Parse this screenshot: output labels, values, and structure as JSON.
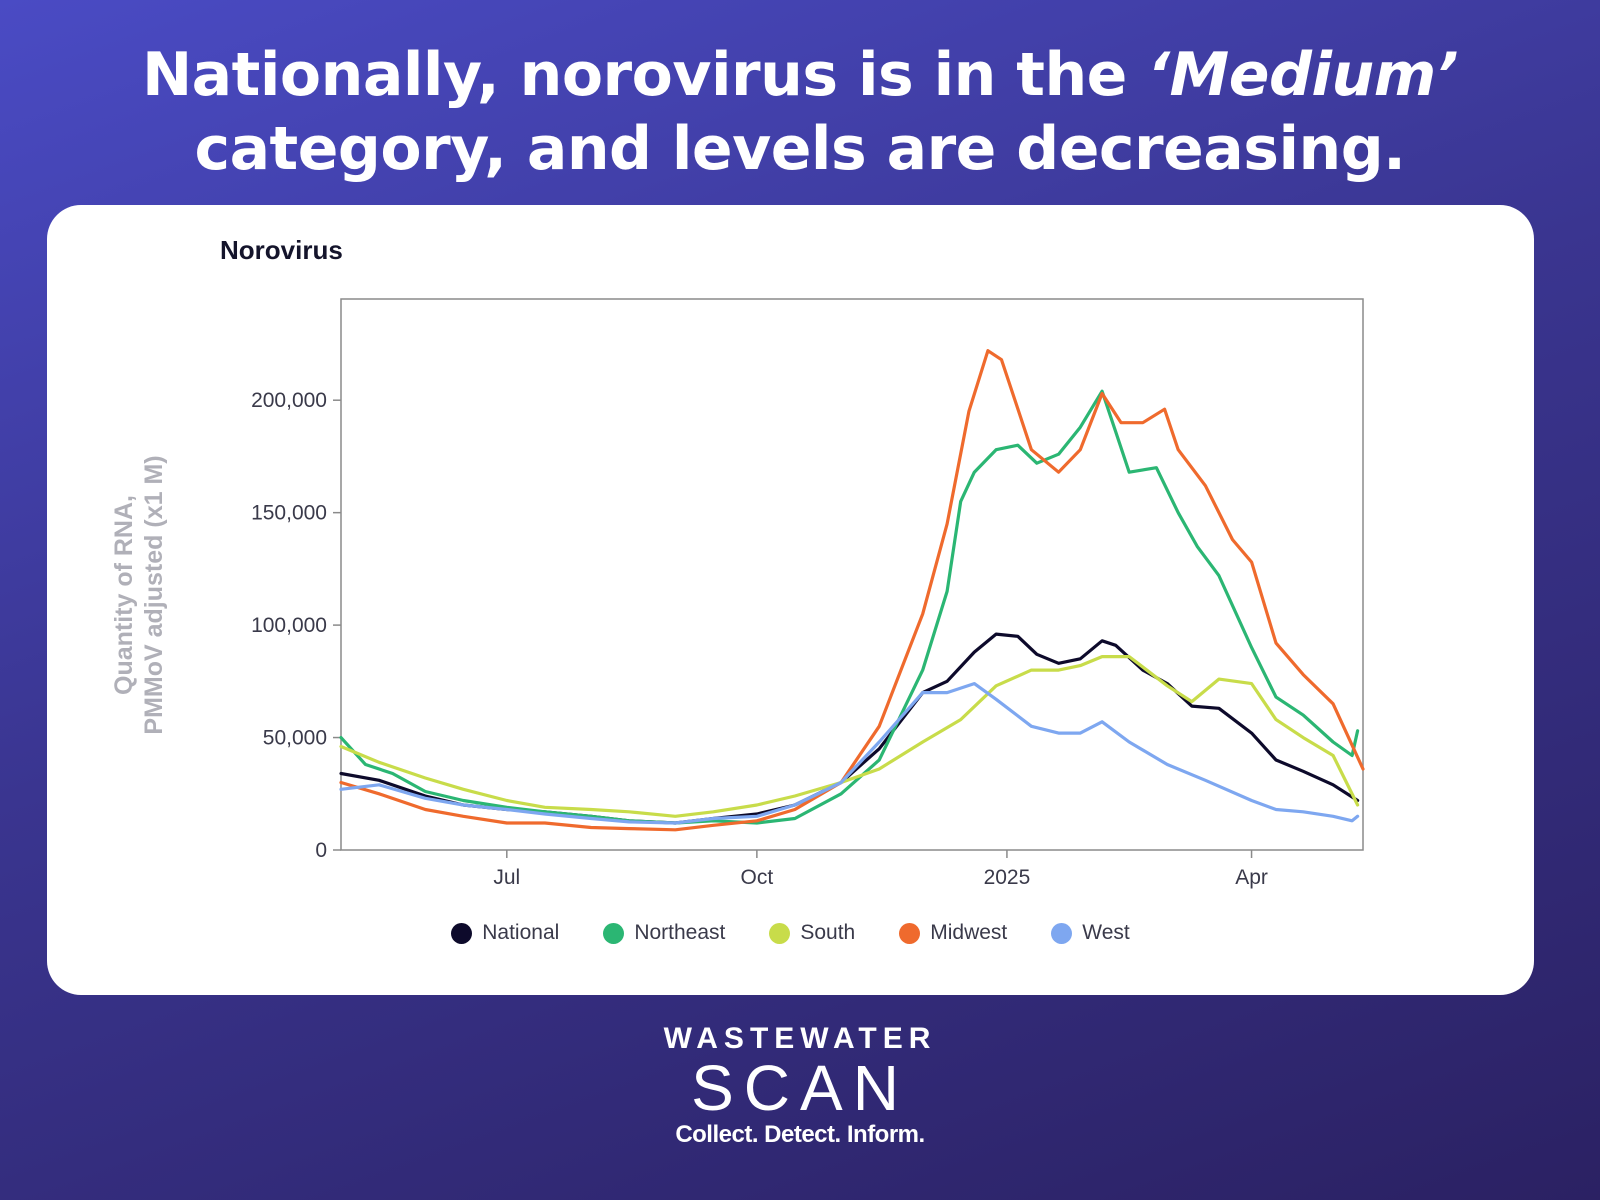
{
  "headline": {
    "line1_a": "Nationally, norovirus is in the ",
    "line1_em": "‘Medium’",
    "line2": "category, and levels are decreasing."
  },
  "logo": {
    "top": "WASTEWATER",
    "main": "SCAN",
    "tagline": "Collect. Detect. Inform."
  },
  "chart_data": {
    "type": "line",
    "title": "Norovirus",
    "ylabel_line1": "Quantity of RNA,",
    "ylabel_line2": "PMMoV adjusted (x1 M)",
    "ylim": [
      0,
      245000
    ],
    "yticks": [
      0,
      50000,
      100000,
      150000,
      200000
    ],
    "ytick_labels": [
      "0",
      "50,000",
      "100,000",
      "150,000",
      "200,000"
    ],
    "xlim": [
      "2024-05-01",
      "2025-05-12"
    ],
    "xticks": [
      "2024-07-01",
      "2024-10-01",
      "2025-01-01",
      "2025-04-01"
    ],
    "xtick_labels": [
      "Jul",
      "Oct",
      "2025",
      "Apr"
    ],
    "grid": false,
    "legend_position": "bottom",
    "series": [
      {
        "name": "National",
        "color": "#0d0a2b",
        "points": [
          [
            "2024-05-01",
            34000
          ],
          [
            "2024-05-15",
            31000
          ],
          [
            "2024-06-01",
            24000
          ],
          [
            "2024-06-15",
            20000
          ],
          [
            "2024-07-01",
            18000
          ],
          [
            "2024-07-15",
            17000
          ],
          [
            "2024-08-01",
            15000
          ],
          [
            "2024-08-15",
            13000
          ],
          [
            "2024-09-01",
            12000
          ],
          [
            "2024-09-15",
            14000
          ],
          [
            "2024-10-01",
            16000
          ],
          [
            "2024-10-15",
            20000
          ],
          [
            "2024-11-01",
            30000
          ],
          [
            "2024-11-15",
            45000
          ],
          [
            "2024-12-01",
            70000
          ],
          [
            "2024-12-10",
            75000
          ],
          [
            "2024-12-20",
            88000
          ],
          [
            "2024-12-28",
            96000
          ],
          [
            "2025-01-05",
            95000
          ],
          [
            "2025-01-12",
            87000
          ],
          [
            "2025-01-20",
            83000
          ],
          [
            "2025-01-28",
            85000
          ],
          [
            "2025-02-05",
            93000
          ],
          [
            "2025-02-10",
            91000
          ],
          [
            "2025-02-20",
            80000
          ],
          [
            "2025-03-01",
            74000
          ],
          [
            "2025-03-10",
            64000
          ],
          [
            "2025-03-20",
            63000
          ],
          [
            "2025-04-01",
            52000
          ],
          [
            "2025-04-10",
            40000
          ],
          [
            "2025-04-20",
            35000
          ],
          [
            "2025-05-01",
            29000
          ],
          [
            "2025-05-10",
            22000
          ]
        ]
      },
      {
        "name": "Northeast",
        "color": "#2bb673",
        "points": [
          [
            "2024-05-01",
            50000
          ],
          [
            "2024-05-10",
            38000
          ],
          [
            "2024-05-20",
            34000
          ],
          [
            "2024-06-01",
            26000
          ],
          [
            "2024-06-15",
            22000
          ],
          [
            "2024-07-01",
            19000
          ],
          [
            "2024-07-15",
            17000
          ],
          [
            "2024-08-01",
            15000
          ],
          [
            "2024-08-15",
            13000
          ],
          [
            "2024-09-01",
            12000
          ],
          [
            "2024-09-15",
            13000
          ],
          [
            "2024-10-01",
            12000
          ],
          [
            "2024-10-15",
            14000
          ],
          [
            "2024-11-01",
            25000
          ],
          [
            "2024-11-15",
            40000
          ],
          [
            "2024-12-01",
            80000
          ],
          [
            "2024-12-10",
            115000
          ],
          [
            "2024-12-15",
            155000
          ],
          [
            "2024-12-20",
            168000
          ],
          [
            "2024-12-28",
            178000
          ],
          [
            "2025-01-05",
            180000
          ],
          [
            "2025-01-12",
            172000
          ],
          [
            "2025-01-20",
            176000
          ],
          [
            "2025-01-28",
            188000
          ],
          [
            "2025-02-05",
            204000
          ],
          [
            "2025-02-10",
            186000
          ],
          [
            "2025-02-15",
            168000
          ],
          [
            "2025-02-25",
            170000
          ],
          [
            "2025-03-05",
            150000
          ],
          [
            "2025-03-12",
            135000
          ],
          [
            "2025-03-20",
            122000
          ],
          [
            "2025-04-01",
            90000
          ],
          [
            "2025-04-10",
            68000
          ],
          [
            "2025-04-20",
            60000
          ],
          [
            "2025-05-01",
            48000
          ],
          [
            "2025-05-08",
            42000
          ],
          [
            "2025-05-10",
            53000
          ]
        ]
      },
      {
        "name": "South",
        "color": "#c8dc4a",
        "points": [
          [
            "2024-05-01",
            46000
          ],
          [
            "2024-05-15",
            39000
          ],
          [
            "2024-06-01",
            32000
          ],
          [
            "2024-06-15",
            27000
          ],
          [
            "2024-07-01",
            22000
          ],
          [
            "2024-07-15",
            19000
          ],
          [
            "2024-08-01",
            18000
          ],
          [
            "2024-08-15",
            17000
          ],
          [
            "2024-09-01",
            15000
          ],
          [
            "2024-09-15",
            17000
          ],
          [
            "2024-10-01",
            20000
          ],
          [
            "2024-10-15",
            24000
          ],
          [
            "2024-11-01",
            30000
          ],
          [
            "2024-11-15",
            36000
          ],
          [
            "2024-12-01",
            48000
          ],
          [
            "2024-12-15",
            58000
          ],
          [
            "2024-12-28",
            73000
          ],
          [
            "2025-01-10",
            80000
          ],
          [
            "2025-01-20",
            80000
          ],
          [
            "2025-01-28",
            82000
          ],
          [
            "2025-02-05",
            86000
          ],
          [
            "2025-02-15",
            86000
          ],
          [
            "2025-03-01",
            73000
          ],
          [
            "2025-03-10",
            66000
          ],
          [
            "2025-03-20",
            76000
          ],
          [
            "2025-04-01",
            74000
          ],
          [
            "2025-04-10",
            58000
          ],
          [
            "2025-04-20",
            50000
          ],
          [
            "2025-05-01",
            42000
          ],
          [
            "2025-05-10",
            20000
          ]
        ]
      },
      {
        "name": "Midwest",
        "color": "#ef6a2d",
        "points": [
          [
            "2024-05-01",
            30000
          ],
          [
            "2024-05-15",
            25000
          ],
          [
            "2024-06-01",
            18000
          ],
          [
            "2024-06-15",
            15000
          ],
          [
            "2024-07-01",
            12000
          ],
          [
            "2024-07-15",
            12000
          ],
          [
            "2024-08-01",
            10000
          ],
          [
            "2024-08-15",
            9500
          ],
          [
            "2024-09-01",
            9000
          ],
          [
            "2024-09-15",
            11000
          ],
          [
            "2024-10-01",
            13000
          ],
          [
            "2024-10-15",
            18000
          ],
          [
            "2024-11-01",
            30000
          ],
          [
            "2024-11-15",
            55000
          ],
          [
            "2024-12-01",
            105000
          ],
          [
            "2024-12-10",
            145000
          ],
          [
            "2024-12-18",
            195000
          ],
          [
            "2024-12-25",
            222000
          ],
          [
            "2024-12-30",
            218000
          ],
          [
            "2025-01-10",
            178000
          ],
          [
            "2025-01-20",
            168000
          ],
          [
            "2025-01-28",
            178000
          ],
          [
            "2025-02-05",
            203000
          ],
          [
            "2025-02-12",
            190000
          ],
          [
            "2025-02-20",
            190000
          ],
          [
            "2025-02-28",
            196000
          ],
          [
            "2025-03-05",
            178000
          ],
          [
            "2025-03-15",
            162000
          ],
          [
            "2025-03-25",
            138000
          ],
          [
            "2025-04-01",
            128000
          ],
          [
            "2025-04-10",
            92000
          ],
          [
            "2025-04-20",
            78000
          ],
          [
            "2025-05-01",
            65000
          ],
          [
            "2025-05-12",
            36000
          ]
        ]
      },
      {
        "name": "West",
        "color": "#7ea7f0",
        "points": [
          [
            "2024-05-01",
            27000
          ],
          [
            "2024-05-15",
            29000
          ],
          [
            "2024-06-01",
            23000
          ],
          [
            "2024-06-15",
            20000
          ],
          [
            "2024-07-01",
            18000
          ],
          [
            "2024-07-15",
            16000
          ],
          [
            "2024-08-01",
            14000
          ],
          [
            "2024-08-15",
            12500
          ],
          [
            "2024-09-01",
            12000
          ],
          [
            "2024-09-15",
            14000
          ],
          [
            "2024-10-01",
            15000
          ],
          [
            "2024-10-15",
            20000
          ],
          [
            "2024-11-01",
            30000
          ],
          [
            "2024-11-15",
            48000
          ],
          [
            "2024-12-01",
            70000
          ],
          [
            "2024-12-10",
            70000
          ],
          [
            "2024-12-20",
            74000
          ],
          [
            "2024-12-28",
            67000
          ],
          [
            "2025-01-10",
            55000
          ],
          [
            "2025-01-20",
            52000
          ],
          [
            "2025-01-28",
            52000
          ],
          [
            "2025-02-05",
            57000
          ],
          [
            "2025-02-15",
            48000
          ],
          [
            "2025-03-01",
            38000
          ],
          [
            "2025-03-15",
            31000
          ],
          [
            "2025-04-01",
            22000
          ],
          [
            "2025-04-10",
            18000
          ],
          [
            "2025-04-20",
            17000
          ],
          [
            "2025-05-01",
            15000
          ],
          [
            "2025-05-08",
            13000
          ],
          [
            "2025-05-10",
            15000
          ]
        ]
      }
    ]
  }
}
